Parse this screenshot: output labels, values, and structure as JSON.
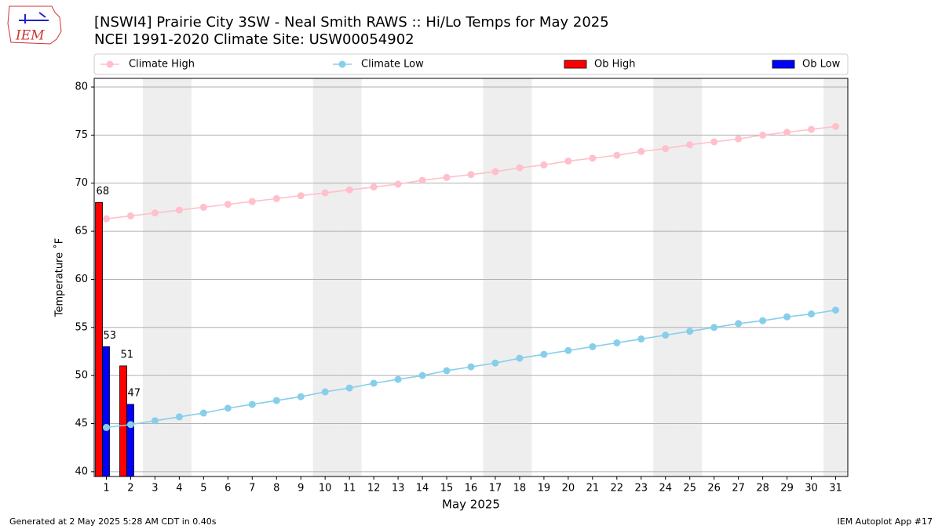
{
  "chart_data": {
    "type": "line",
    "title": "[NSWI4] Prairie City 3SW - Neal Smith RAWS :: Hi/Lo Temps for May 2025",
    "subtitle": "NCEI 1991-2020 Climate Site: USW00054902",
    "logo_text": "IEM",
    "xlabel": "May 2025",
    "ylabel": "Temperature ˚F",
    "footer_left": "Generated at 2 May 2025 5:28 AM CDT in 0.40s",
    "footer_right": "IEM Autoplot App #17",
    "x": [
      1,
      2,
      3,
      4,
      5,
      6,
      7,
      8,
      9,
      10,
      11,
      12,
      13,
      14,
      15,
      16,
      17,
      18,
      19,
      20,
      21,
      22,
      23,
      24,
      25,
      26,
      27,
      28,
      29,
      30,
      31
    ],
    "xticks": [
      1,
      2,
      3,
      4,
      5,
      6,
      7,
      8,
      9,
      10,
      11,
      12,
      13,
      14,
      15,
      16,
      17,
      18,
      19,
      20,
      21,
      22,
      23,
      24,
      25,
      26,
      27,
      28,
      29,
      30,
      31
    ],
    "xlim": [
      0.5,
      31.5
    ],
    "ylim": [
      39.5,
      80.9
    ],
    "yticks": [
      40,
      45,
      50,
      55,
      60,
      65,
      70,
      75,
      80
    ],
    "grid": true,
    "shaded_days": [
      3,
      4,
      10,
      11,
      17,
      18,
      24,
      25,
      31
    ],
    "series": [
      {
        "name": "Climate High",
        "type": "line",
        "color": "#ffc0cb",
        "values": [
          66.3,
          66.6,
          66.9,
          67.2,
          67.5,
          67.8,
          68.1,
          68.4,
          68.7,
          69.0,
          69.3,
          69.6,
          69.9,
          70.3,
          70.6,
          70.9,
          71.2,
          71.6,
          71.9,
          72.3,
          72.6,
          72.9,
          73.3,
          73.6,
          74.0,
          74.3,
          74.6,
          75.0,
          75.3,
          75.6,
          75.9
        ]
      },
      {
        "name": "Climate Low",
        "type": "line",
        "color": "#87ceeb",
        "values": [
          44.6,
          44.9,
          45.3,
          45.7,
          46.1,
          46.6,
          47.0,
          47.4,
          47.8,
          48.3,
          48.7,
          49.2,
          49.6,
          50.0,
          50.5,
          50.9,
          51.3,
          51.8,
          52.2,
          52.6,
          53.0,
          53.4,
          53.8,
          54.2,
          54.6,
          55.0,
          55.4,
          55.7,
          56.1,
          56.4,
          56.8
        ]
      },
      {
        "name": "Ob High",
        "type": "bar",
        "color": "#ff0000",
        "values": [
          68,
          51,
          null,
          null,
          null,
          null,
          null,
          null,
          null,
          null,
          null,
          null,
          null,
          null,
          null,
          null,
          null,
          null,
          null,
          null,
          null,
          null,
          null,
          null,
          null,
          null,
          null,
          null,
          null,
          null,
          null
        ]
      },
      {
        "name": "Ob Low",
        "type": "bar",
        "color": "#0000ff",
        "values": [
          53,
          47,
          null,
          null,
          null,
          null,
          null,
          null,
          null,
          null,
          null,
          null,
          null,
          null,
          null,
          null,
          null,
          null,
          null,
          null,
          null,
          null,
          null,
          null,
          null,
          null,
          null,
          null,
          null,
          null,
          null
        ]
      }
    ]
  }
}
